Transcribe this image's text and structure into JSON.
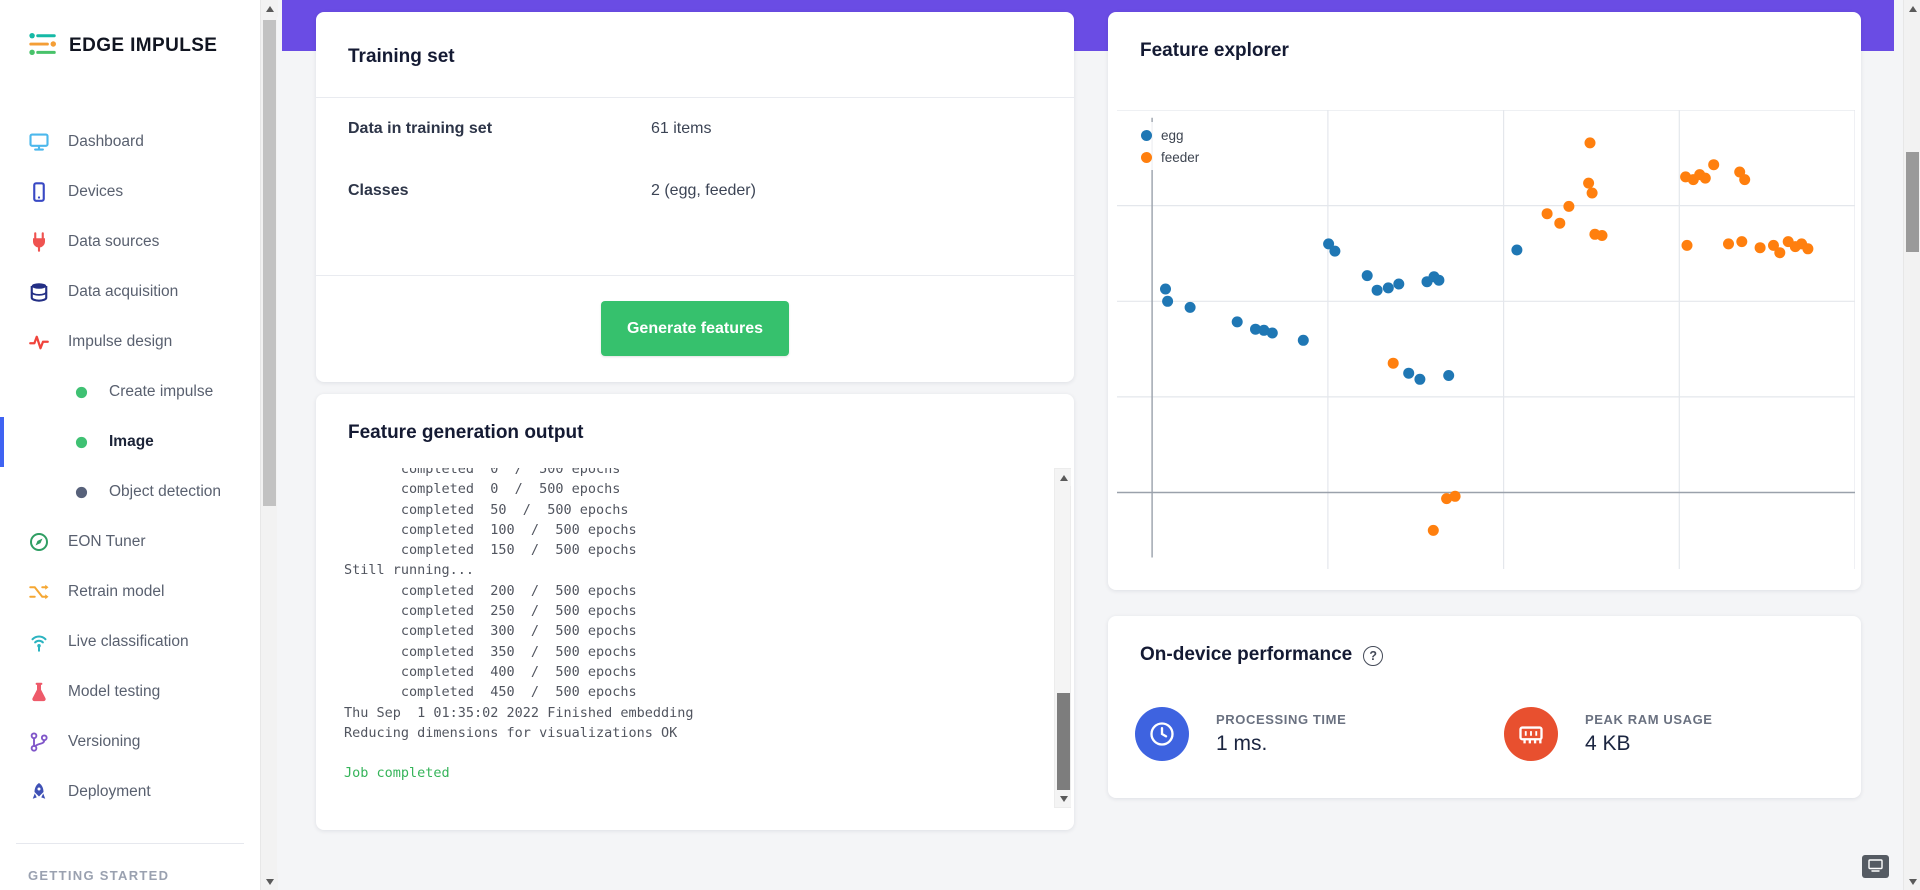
{
  "app": {
    "brand": "EDGE IMPULSE",
    "accent_purple": "#6a4ce4",
    "accent_green": "#36c16d"
  },
  "sidebar": {
    "items": [
      {
        "id": "dashboard",
        "label": "Dashboard",
        "glyph": "monitor",
        "color": "#4cb8ec"
      },
      {
        "id": "devices",
        "label": "Devices",
        "glyph": "device",
        "color": "#3949c4"
      },
      {
        "id": "data-sources",
        "label": "Data sources",
        "glyph": "plug",
        "color": "#ef5350"
      },
      {
        "id": "data-acquisition",
        "label": "Data acquisition",
        "glyph": "database",
        "color": "#232f85"
      },
      {
        "id": "impulse-design",
        "label": "Impulse design",
        "glyph": "pulse",
        "color": "#f0443c"
      },
      {
        "id": "create-impulse",
        "label": "Create impulse",
        "glyph": "dot",
        "color": "#3fc173",
        "sub": true
      },
      {
        "id": "image",
        "label": "Image",
        "glyph": "dot",
        "color": "#3fc173",
        "sub": true,
        "active": true
      },
      {
        "id": "object-detection",
        "label": "Object detection",
        "glyph": "dot",
        "color": "#57617a",
        "sub": true
      },
      {
        "id": "eon-tuner",
        "label": "EON Tuner",
        "glyph": "compass",
        "color": "#2f9e63"
      },
      {
        "id": "retrain-model",
        "label": "Retrain model",
        "glyph": "shuffle",
        "color": "#f5a733"
      },
      {
        "id": "live-classification",
        "label": "Live classification",
        "glyph": "antenna",
        "color": "#2bb3c0"
      },
      {
        "id": "model-testing",
        "label": "Model testing",
        "glyph": "flask",
        "color": "#ee5a6a"
      },
      {
        "id": "versioning",
        "label": "Versioning",
        "glyph": "branch",
        "color": "#8056c9"
      },
      {
        "id": "deployment",
        "label": "Deployment",
        "glyph": "rocket",
        "color": "#3f51b5"
      }
    ],
    "section_header": "GETTING STARTED"
  },
  "training_set": {
    "title": "Training set",
    "rows": [
      {
        "label": "Data in training set",
        "value": "61 items"
      },
      {
        "label": "Classes",
        "value": "2 (egg, feeder)"
      }
    ],
    "generate_button": "Generate features"
  },
  "feature_output": {
    "title": "Feature generation output",
    "clipped_line": "       completed  0  /  500 epochs",
    "lines": [
      "       completed  0  /  500 epochs",
      "       completed  50  /  500 epochs",
      "       completed  100  /  500 epochs",
      "       completed  150  /  500 epochs",
      "Still running...",
      "       completed  200  /  500 epochs",
      "       completed  250  /  500 epochs",
      "       completed  300  /  500 epochs",
      "       completed  350  /  500 epochs",
      "       completed  400  /  500 epochs",
      "       completed  450  /  500 epochs",
      "Thu Sep  1 01:35:02 2022 Finished embedding",
      "Reducing dimensions for visualizations OK",
      ""
    ],
    "job_completed": "Job completed"
  },
  "feature_explorer": {
    "title": "Feature explorer"
  },
  "chart_data": {
    "type": "scatter",
    "title": "Feature explorer",
    "xlim": [
      -5,
      100
    ],
    "ylim": [
      -20,
      100
    ],
    "grid": true,
    "grid_x": [
      25,
      50,
      75,
      100
    ],
    "grid_y": [
      25,
      50,
      75,
      100
    ],
    "legend_position": "top-left",
    "series": [
      {
        "name": "egg",
        "color": "#1f77b4",
        "points": [
          [
            1.9,
            53.2
          ],
          [
            2.2,
            50.0
          ],
          [
            5.4,
            48.4
          ],
          [
            12.1,
            44.6
          ],
          [
            14.7,
            42.7
          ],
          [
            15.9,
            42.4
          ],
          [
            17.1,
            41.7
          ],
          [
            21.5,
            39.8
          ],
          [
            25.1,
            65.0
          ],
          [
            26.0,
            63.1
          ],
          [
            30.6,
            56.7
          ],
          [
            32.0,
            52.9
          ],
          [
            33.6,
            53.5
          ],
          [
            35.1,
            54.5
          ],
          [
            39.1,
            55.1
          ],
          [
            40.1,
            56.4
          ],
          [
            40.8,
            55.5
          ],
          [
            36.5,
            31.2
          ],
          [
            38.1,
            29.6
          ],
          [
            42.2,
            30.6
          ],
          [
            51.9,
            63.4
          ]
        ]
      },
      {
        "name": "feeder",
        "color": "#ff7f0e",
        "points": [
          [
            34.3,
            33.8
          ],
          [
            40.0,
            -9.9
          ],
          [
            41.9,
            -1.6
          ],
          [
            43.1,
            -1.0
          ],
          [
            56.2,
            72.9
          ],
          [
            58.0,
            70.4
          ],
          [
            59.3,
            74.8
          ],
          [
            62.3,
            91.4
          ],
          [
            62.1,
            80.9
          ],
          [
            62.6,
            78.3
          ],
          [
            63.0,
            67.5
          ],
          [
            64.0,
            67.2
          ],
          [
            75.9,
            82.5
          ],
          [
            77.0,
            81.8
          ],
          [
            77.9,
            83.1
          ],
          [
            78.7,
            82.2
          ],
          [
            79.9,
            85.7
          ],
          [
            83.6,
            83.8
          ],
          [
            84.3,
            81.8
          ],
          [
            76.1,
            64.6
          ],
          [
            82.0,
            65.0
          ],
          [
            83.9,
            65.6
          ],
          [
            86.5,
            64.0
          ],
          [
            88.4,
            64.6
          ],
          [
            89.3,
            62.7
          ],
          [
            90.5,
            65.6
          ],
          [
            91.5,
            64.3
          ],
          [
            92.4,
            65.0
          ],
          [
            93.3,
            63.7
          ]
        ]
      }
    ]
  },
  "performance": {
    "title": "On-device performance",
    "help_icon": "?",
    "metrics": [
      {
        "label": "PROCESSING TIME",
        "value": "1 ms.",
        "icon": "clock",
        "color": "#3e63e0"
      },
      {
        "label": "PEAK RAM USAGE",
        "value": "4 KB",
        "icon": "ram",
        "color": "#e8502f"
      }
    ]
  }
}
